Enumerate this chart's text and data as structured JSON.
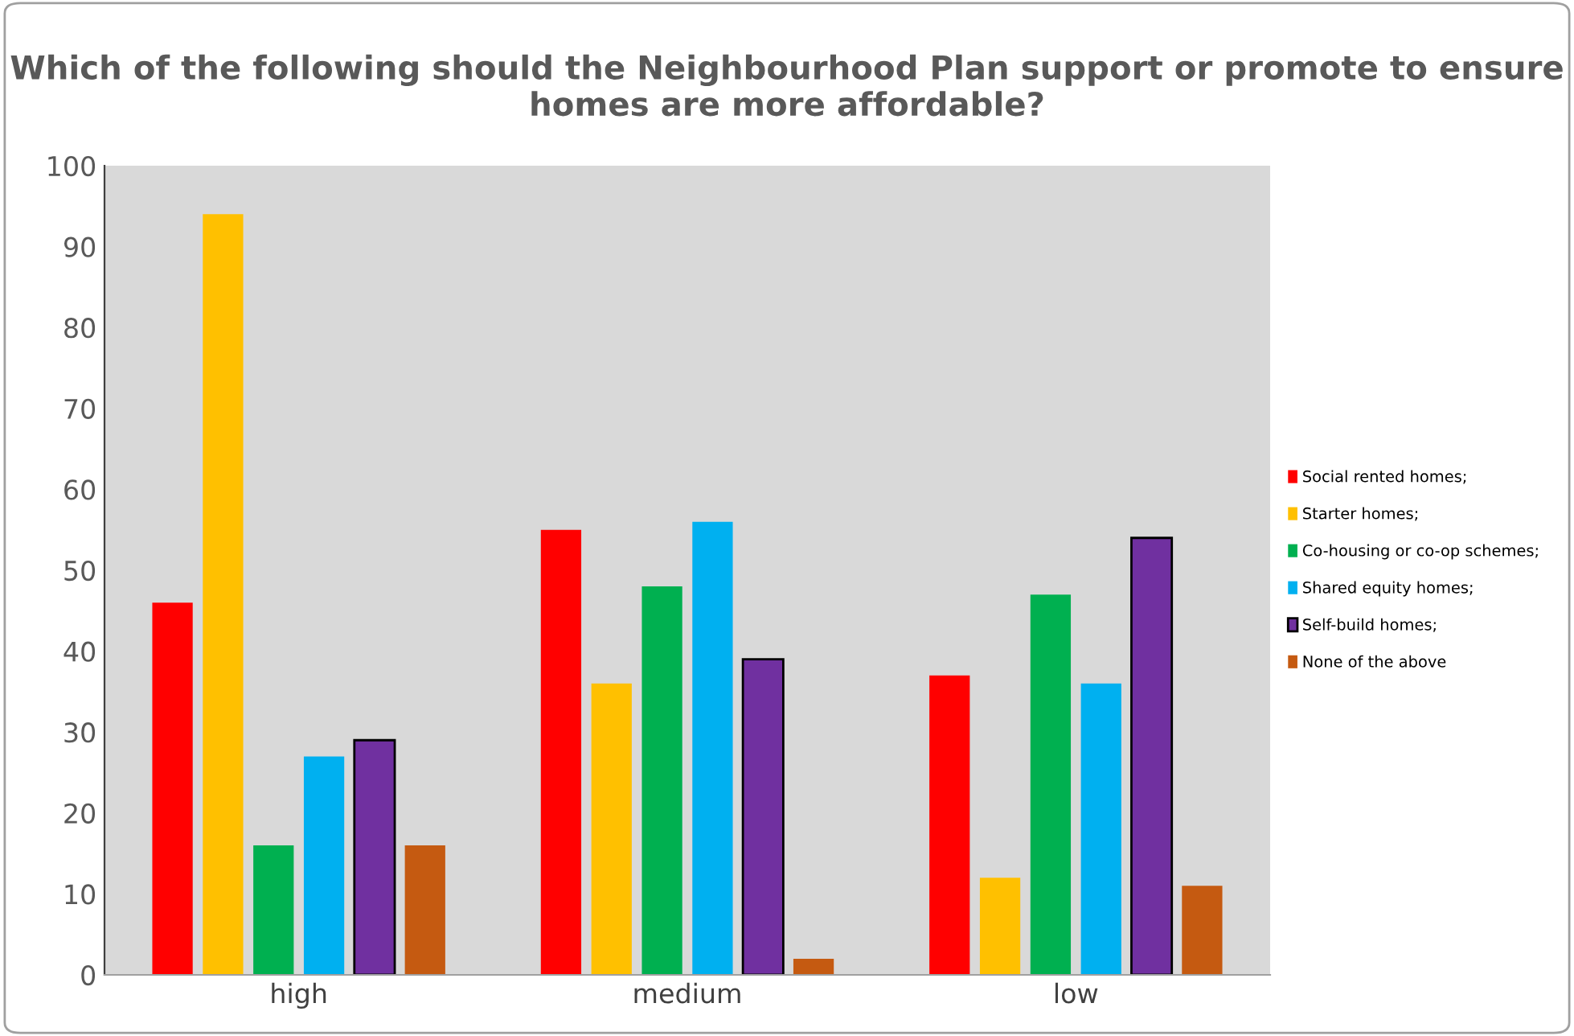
{
  "chart_data": {
    "type": "bar",
    "title": "Which of the following should the Neighbourhood Plan support or promote to ensure homes are more affordable?",
    "categories": [
      "high",
      "medium",
      "low"
    ],
    "series": [
      {
        "name": "Social rented homes;",
        "color": "#ff0000",
        "values": [
          46,
          55,
          37
        ]
      },
      {
        "name": "Starter homes;",
        "color": "#ffc000",
        "values": [
          94,
          36,
          12
        ]
      },
      {
        "name": "Co-housing or co-op schemes;",
        "color": "#00b050",
        "values": [
          16,
          48,
          47
        ]
      },
      {
        "name": "Shared equity homes;",
        "color": "#00b0f0",
        "values": [
          27,
          56,
          36
        ]
      },
      {
        "name": "Self-build homes;",
        "color": "#7030a0",
        "values": [
          29,
          39,
          54
        ]
      },
      {
        "name": "None of the above",
        "color": "#c55a11",
        "values": [
          16,
          2,
          11
        ]
      }
    ],
    "ylim": [
      0,
      100
    ],
    "yticks": [
      0,
      10,
      20,
      30,
      40,
      50,
      60,
      70,
      80,
      90,
      100
    ],
    "grid": false,
    "legend": "right"
  }
}
